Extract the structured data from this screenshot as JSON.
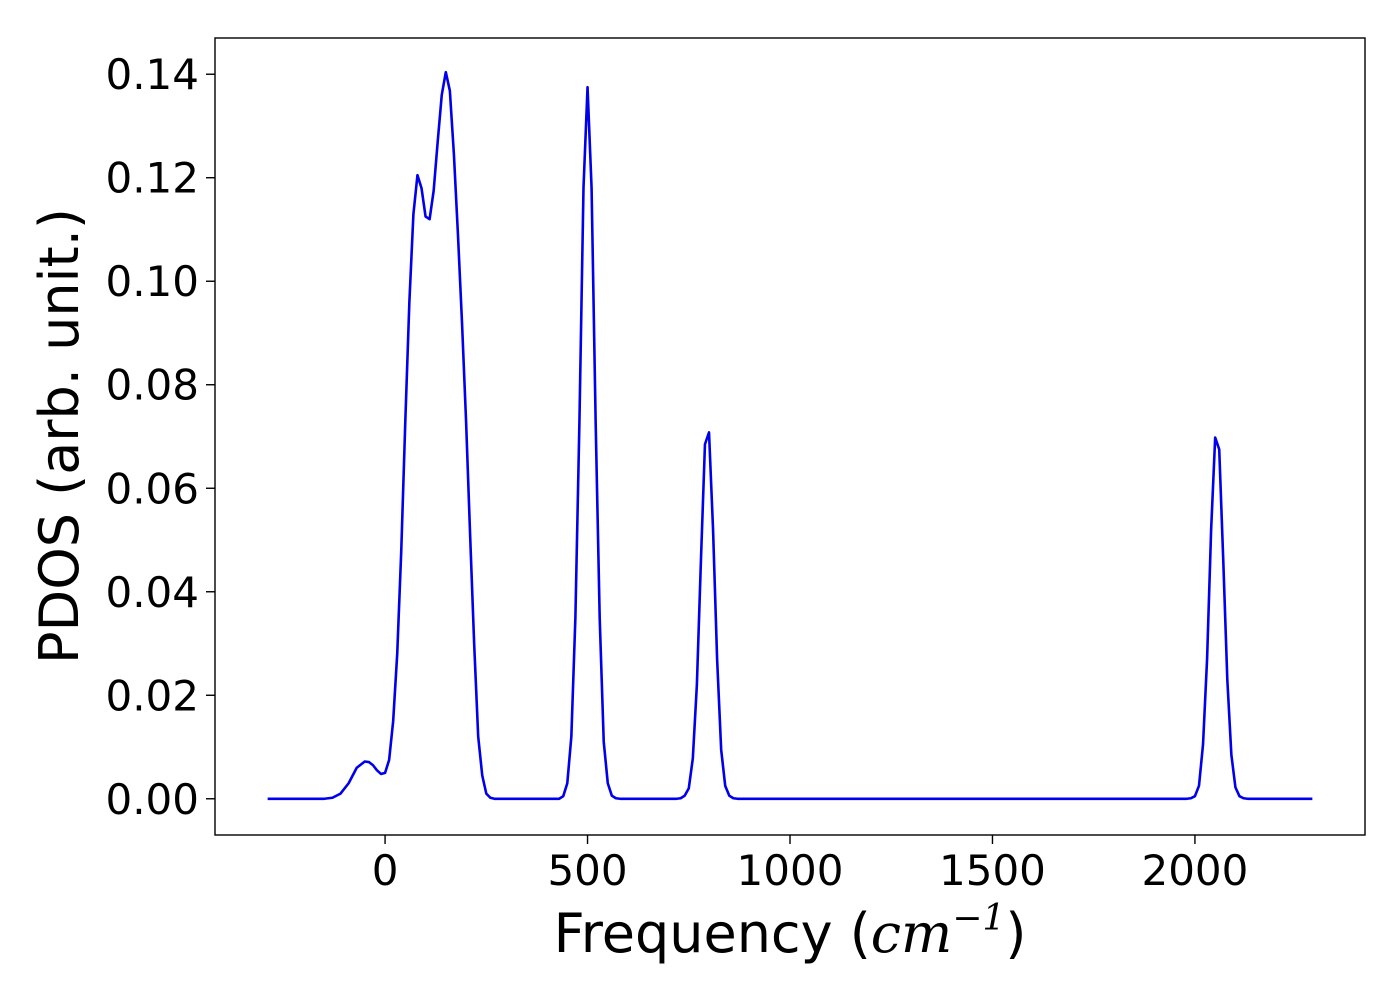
{
  "chart_data": {
    "type": "line",
    "xlabel": "Frequency (",
    "xlabel_unit_base": "cm",
    "xlabel_unit_exp": "−1",
    "xlabel_close": ")",
    "ylabel": "PDOS (arb. unit.)",
    "xlim": [
      -420,
      2420
    ],
    "ylim": [
      -0.007,
      0.147
    ],
    "xticks": [
      0,
      500,
      1000,
      1500,
      2000
    ],
    "xtick_labels": [
      "0",
      "500",
      "1000",
      "1500",
      "2000"
    ],
    "yticks": [
      0.0,
      0.02,
      0.04,
      0.06,
      0.08,
      0.1,
      0.12,
      0.14
    ],
    "ytick_labels": [
      "0.00",
      "0.02",
      "0.04",
      "0.06",
      "0.08",
      "0.10",
      "0.12",
      "0.14"
    ],
    "grid": false,
    "series": [
      {
        "color": "#0000ee",
        "x": [
          -290,
          -200,
          -150,
          -130,
          -110,
          -90,
          -70,
          -50,
          -40,
          -30,
          -20,
          -10,
          0,
          10,
          20,
          30,
          40,
          50,
          60,
          70,
          80,
          90,
          100,
          110,
          120,
          130,
          140,
          150,
          160,
          170,
          180,
          190,
          200,
          210,
          220,
          230,
          240,
          250,
          260,
          270,
          280,
          290,
          300,
          310,
          320,
          330,
          340,
          350,
          360,
          370,
          380,
          390,
          400,
          410,
          420,
          430,
          440,
          450,
          460,
          470,
          480,
          490,
          500,
          510,
          520,
          530,
          540,
          550,
          560,
          570,
          580,
          600,
          650,
          700,
          720,
          730,
          740,
          750,
          760,
          770,
          780,
          790,
          800,
          810,
          820,
          830,
          840,
          850,
          860,
          870,
          880,
          890,
          900,
          1000,
          1500,
          1950,
          1980,
          1990,
          2000,
          2010,
          2020,
          2030,
          2040,
          2050,
          2060,
          2070,
          2080,
          2090,
          2100,
          2110,
          2120,
          2130,
          2140,
          2150,
          2160,
          2200,
          2290
        ],
        "y": [
          0.0,
          0.0,
          0.0,
          0.0002,
          0.001,
          0.003,
          0.006,
          0.0072,
          0.0071,
          0.0065,
          0.0055,
          0.0048,
          0.005,
          0.0075,
          0.015,
          0.028,
          0.048,
          0.073,
          0.096,
          0.113,
          0.1205,
          0.118,
          0.1125,
          0.112,
          0.1175,
          0.127,
          0.136,
          0.1404,
          0.1368,
          0.1245,
          0.109,
          0.092,
          0.073,
          0.051,
          0.03,
          0.012,
          0.0045,
          0.001,
          0.0002,
          0.0,
          0.0,
          0.0,
          0.0,
          0.0,
          0.0,
          0.0,
          0.0,
          0.0,
          0.0,
          0.0,
          0.0,
          0.0,
          0.0,
          0.0,
          0.0,
          0.0,
          0.0005,
          0.003,
          0.012,
          0.035,
          0.073,
          0.118,
          0.1375,
          0.118,
          0.073,
          0.035,
          0.011,
          0.003,
          0.0006,
          0.0001,
          0.0,
          0.0,
          0.0,
          0.0,
          0.0,
          0.0001,
          0.0006,
          0.002,
          0.0078,
          0.022,
          0.046,
          0.0685,
          0.0708,
          0.052,
          0.027,
          0.0095,
          0.0025,
          0.0006,
          0.0001,
          0.0,
          0.0,
          0.0,
          0.0,
          0.0,
          0.0,
          0.0,
          0.0,
          0.0001,
          0.0005,
          0.0025,
          0.0105,
          0.027,
          0.052,
          0.0698,
          0.0675,
          0.046,
          0.023,
          0.0085,
          0.0022,
          0.0005,
          0.0001,
          0.0,
          0.0,
          0.0,
          0.0,
          0.0,
          0.0
        ]
      }
    ]
  }
}
